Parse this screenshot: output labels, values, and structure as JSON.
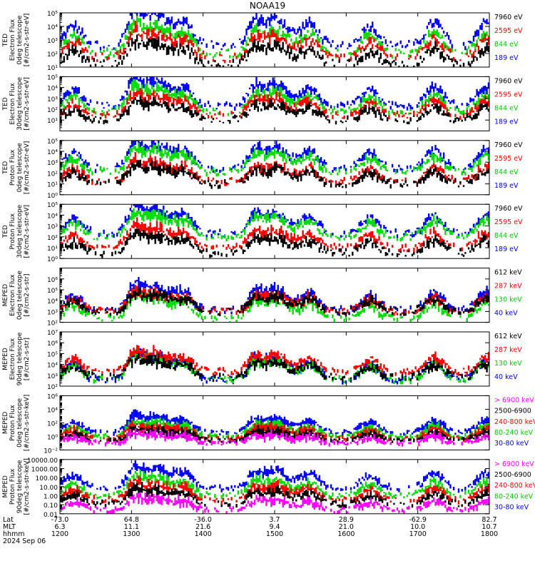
{
  "title": "NOAA19",
  "chart_data": [
    {
      "type": "scatter",
      "ylabel": [
        "TED",
        "Electron Flux",
        "0deg telescope",
        "[#/cm2-s-str-eV]"
      ],
      "y_scale": "log",
      "ylim": [
        10,
        100000
      ],
      "yticks": [
        "10¹",
        "10²",
        "10³",
        "10⁴",
        "10⁵"
      ],
      "ytick_values": [
        10,
        100,
        1000,
        10000,
        100000
      ],
      "legend": [
        {
          "label": "7960 eV",
          "color": "#000000"
        },
        {
          "label": "2595 eV",
          "color": "#ff0000"
        },
        {
          "label": "844 eV",
          "color": "#00cc00"
        },
        {
          "label": "189 eV",
          "color": "#0000ff"
        }
      ],
      "series_colors": [
        "#0000ff",
        "#00dd00",
        "#ff0000",
        "#000000"
      ],
      "series_levels": [
        2.6,
        2.0,
        1.7,
        1.2
      ]
    },
    {
      "type": "scatter",
      "ylabel": [
        "TED",
        "Electron Flux",
        "30deg telescope",
        "[#/cm2-s-str-eV]"
      ],
      "y_scale": "log",
      "ylim": [
        1,
        100000
      ],
      "yticks": [
        "10¹",
        "10²",
        "10³",
        "10⁴",
        "10⁵"
      ],
      "ytick_values": [
        10,
        100,
        1000,
        10000,
        100000
      ],
      "legend": [
        {
          "label": "7960 eV",
          "color": "#000000"
        },
        {
          "label": "2595 eV",
          "color": "#ff0000"
        },
        {
          "label": "844 eV",
          "color": "#00cc00"
        },
        {
          "label": "189 eV",
          "color": "#0000ff"
        }
      ],
      "series_colors": [
        "#0000ff",
        "#00dd00",
        "#ff0000",
        "#000000"
      ],
      "series_levels": [
        2.3,
        1.8,
        1.4,
        1.0
      ]
    },
    {
      "type": "scatter",
      "ylabel": [
        "TED",
        "Proton Flux",
        "0deg telescope",
        "[#/cm2-s-str-eV]"
      ],
      "y_scale": "log",
      "ylim": [
        1,
        100000
      ],
      "yticks": [
        "10⁰",
        "10¹",
        "10²",
        "10³",
        "10⁴",
        "10⁵"
      ],
      "ytick_values": [
        1,
        10,
        100,
        1000,
        10000,
        100000
      ],
      "legend": [
        {
          "label": "7960 eV",
          "color": "#000000"
        },
        {
          "label": "2595 eV",
          "color": "#ff0000"
        },
        {
          "label": "844 eV",
          "color": "#00cc00"
        },
        {
          "label": "189 eV",
          "color": "#0000ff"
        }
      ],
      "series_colors": [
        "#0000ff",
        "#00dd00",
        "#ff0000",
        "#000000"
      ],
      "series_levels": [
        2.4,
        2.1,
        1.2,
        1.0
      ]
    },
    {
      "type": "scatter",
      "ylabel": [
        "TED",
        "Proton Flux",
        "30deg telescope",
        "[#/cm2-s-str-eV]"
      ],
      "y_scale": "log",
      "ylim": [
        1,
        100000
      ],
      "yticks": [
        "10⁰",
        "10¹",
        "10²",
        "10³",
        "10⁴",
        "10⁵"
      ],
      "ytick_values": [
        1,
        10,
        100,
        1000,
        10000,
        100000
      ],
      "legend": [
        {
          "label": "7960 eV",
          "color": "#000000"
        },
        {
          "label": "2595 eV",
          "color": "#ff0000"
        },
        {
          "label": "844 eV",
          "color": "#00cc00"
        },
        {
          "label": "189 eV",
          "color": "#0000ff"
        }
      ],
      "series_colors": [
        "#0000ff",
        "#00dd00",
        "#ff0000",
        "#000000"
      ],
      "series_levels": [
        2.3,
        2.0,
        1.0,
        0.5
      ]
    },
    {
      "type": "scatter",
      "ylabel": [
        "MEPED",
        "Electron Flux",
        "0deg telescope",
        "[#/cm2-s-str]"
      ],
      "y_scale": "log",
      "ylim": [
        100,
        10000000
      ],
      "yticks": [
        "10²",
        "10³",
        "10⁴",
        "10⁵",
        "10⁶"
      ],
      "ytick_values": [
        100,
        1000,
        10000,
        100000,
        1000000
      ],
      "legend": [
        {
          "label": "612 keV",
          "color": "#000000"
        },
        {
          "label": "287 keV",
          "color": "#ff0000"
        },
        {
          "label": "130 keV",
          "color": "#00cc00"
        },
        {
          "label": "40 keV",
          "color": "#0000ff"
        }
      ],
      "series_colors": [
        "#0000ff",
        "#00dd00",
        "#ff0000",
        "#000000"
      ],
      "series_levels": [
        3.1,
        2.3,
        3.0,
        3.0
      ]
    },
    {
      "type": "scatter",
      "ylabel": [
        "MEPED",
        "Electron Flux",
        "90deg telescope",
        "[#/cm2-s-str]"
      ],
      "y_scale": "log",
      "ylim": [
        100,
        10000000
      ],
      "yticks": [
        "10²",
        "10³",
        "10⁴",
        "10⁵",
        "10⁶",
        "10⁷"
      ],
      "ytick_values": [
        100,
        1000,
        10000,
        100000,
        1000000,
        10000000
      ],
      "legend": [
        {
          "label": "612 keV",
          "color": "#000000"
        },
        {
          "label": "287 keV",
          "color": "#ff0000"
        },
        {
          "label": "130 keV",
          "color": "#00cc00"
        },
        {
          "label": "40 keV",
          "color": "#0000ff"
        }
      ],
      "series_colors": [
        "#0000ff",
        "#00dd00",
        "#ff0000",
        "#000000"
      ],
      "series_levels": [
        2.6,
        2.6,
        3.3,
        2.8
      ]
    },
    {
      "type": "scatter",
      "ylabel": [
        "MEPED",
        "Proton Flux",
        "0deg telescope",
        "[#/cm2-s-str-keV]"
      ],
      "y_scale": "log",
      "ylim": [
        0.01,
        1000000
      ],
      "yticks": [
        "10⁻²",
        "10⁰",
        "10²",
        "10⁴",
        "10⁶"
      ],
      "ytick_values": [
        0.01,
        1,
        100,
        10000,
        1000000
      ],
      "legend": [
        {
          "label": "> 6900 keV",
          "color": "#ff00ff"
        },
        {
          "label": "2500-6900",
          "color": "#000000"
        },
        {
          "label": "240-800 keV",
          "color": "#ff0000"
        },
        {
          "label": "80-240 keV",
          "color": "#00cc00"
        },
        {
          "label": "30-80 keV",
          "color": "#0000ff"
        }
      ],
      "series_colors": [
        "#0000ff",
        "#00dd00",
        "#ff0000",
        "#000000",
        "#ff00ff"
      ],
      "series_levels": [
        0.6,
        0.0,
        -0.3,
        -0.6,
        -1.0
      ]
    },
    {
      "type": "scatter",
      "ylabel": [
        "MEPED",
        "Proton Flux",
        "90deg telescope",
        "[#/cm2-s-str-keV]"
      ],
      "y_scale": "log",
      "ylim": [
        0.01,
        10000
      ],
      "yticks": [
        "0.01",
        "0.10",
        "1.00",
        "10.00",
        "100.00",
        "1000.00",
        "10000.00"
      ],
      "ytick_values": [
        0.01,
        0.1,
        1,
        10,
        100,
        1000,
        10000
      ],
      "legend": [
        {
          "label": "> 6900 keV",
          "color": "#ff00ff"
        },
        {
          "label": "2500-6900",
          "color": "#000000"
        },
        {
          "label": "240-800 keV",
          "color": "#ff0000"
        },
        {
          "label": "80-240 keV",
          "color": "#00cc00"
        },
        {
          "label": "30-80 keV",
          "color": "#0000ff"
        }
      ],
      "series_colors": [
        "#0000ff",
        "#00dd00",
        "#ff0000",
        "#000000",
        "#ff00ff"
      ],
      "series_levels": [
        0.8,
        0.0,
        -0.5,
        -0.9,
        -1.6
      ]
    }
  ],
  "x_axis": {
    "row_labels": [
      "Lat",
      "MLT",
      "hhmm"
    ],
    "ticks": [
      {
        "lat": "-73.0",
        "mlt": "6.3",
        "hhmm": "1200"
      },
      {
        "lat": "64.8",
        "mlt": "11.1",
        "hhmm": "1300"
      },
      {
        "lat": "-36.0",
        "mlt": "21.6",
        "hhmm": "1400"
      },
      {
        "lat": "3.7",
        "mlt": "9.4",
        "hhmm": "1500"
      },
      {
        "lat": "28.9",
        "mlt": "21.0",
        "hhmm": "1600"
      },
      {
        "lat": "-62.9",
        "mlt": "10.0",
        "hhmm": "1700"
      },
      {
        "lat": "82.7",
        "mlt": "10.7",
        "hhmm": "1800"
      }
    ],
    "date": "2024 Sep 06"
  }
}
